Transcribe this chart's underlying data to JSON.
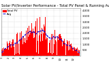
{
  "title": "Solar PV/Inverter Performance - Total PV Panel & Running Average Power Output",
  "legend_pv": "Total PV",
  "legend_avg": "----",
  "background_color": "#ffffff",
  "plot_bg_color": "#ffffff",
  "grid_color": "#aaaaaa",
  "bar_color": "#ff0000",
  "avg_line_color": "#0000dd",
  "n_points": 365,
  "peak_day": 172,
  "peak_value": 3900,
  "ylim": [
    0,
    4200
  ],
  "ytick_values": [
    500,
    1000,
    1500,
    2000,
    2500,
    3000,
    3500,
    4000
  ],
  "ytick_labels": [
    "500",
    "1,000",
    "1,500",
    "2,000",
    "2,500",
    "3,000",
    "3,500",
    "4,000"
  ],
  "title_fontsize": 3.8,
  "tick_fontsize": 2.8
}
